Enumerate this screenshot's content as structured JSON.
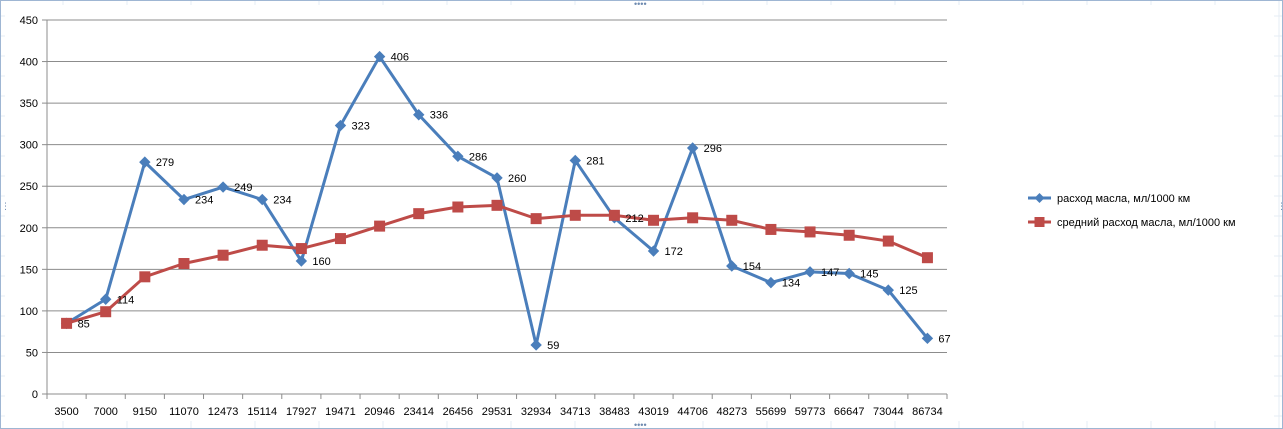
{
  "chart_data": {
    "type": "line",
    "title": "",
    "xlabel": "",
    "ylabel": "",
    "categories": [
      "3500",
      "7000",
      "9150",
      "11070",
      "12473",
      "15114",
      "17927",
      "19471",
      "20946",
      "23414",
      "26456",
      "29531",
      "32934",
      "34713",
      "38483",
      "43019",
      "44706",
      "48273",
      "55699",
      "59773",
      "66647",
      "73044",
      "86734"
    ],
    "ylim": [
      0,
      450
    ],
    "yticks": [
      0,
      50,
      100,
      150,
      200,
      250,
      300,
      350,
      400,
      450
    ],
    "grid": true,
    "legend_position": "right",
    "series": [
      {
        "name": "расход масла, мл/1000 км",
        "color": "#4a7ebb",
        "marker": "diamond",
        "values": [
          85,
          114,
          279,
          234,
          249,
          234,
          160,
          323,
          406,
          336,
          286,
          260,
          59,
          281,
          212,
          172,
          296,
          154,
          134,
          147,
          145,
          125,
          67
        ],
        "labels": [
          "85",
          "114",
          "279",
          "234",
          "249",
          "234",
          "160",
          "323",
          "406",
          "336",
          "286",
          "260",
          "59",
          "281",
          "212",
          "172",
          "296",
          "154",
          "134",
          "147",
          "145",
          "125",
          "67"
        ]
      },
      {
        "name": "средний расход масла, мл/1000 км",
        "color": "#be4b48",
        "marker": "square",
        "values": [
          85,
          99,
          141,
          157,
          167,
          179,
          175,
          187,
          202,
          217,
          225,
          227,
          211,
          215,
          215,
          209,
          212,
          209,
          198,
          195,
          191,
          184,
          164
        ]
      }
    ]
  }
}
